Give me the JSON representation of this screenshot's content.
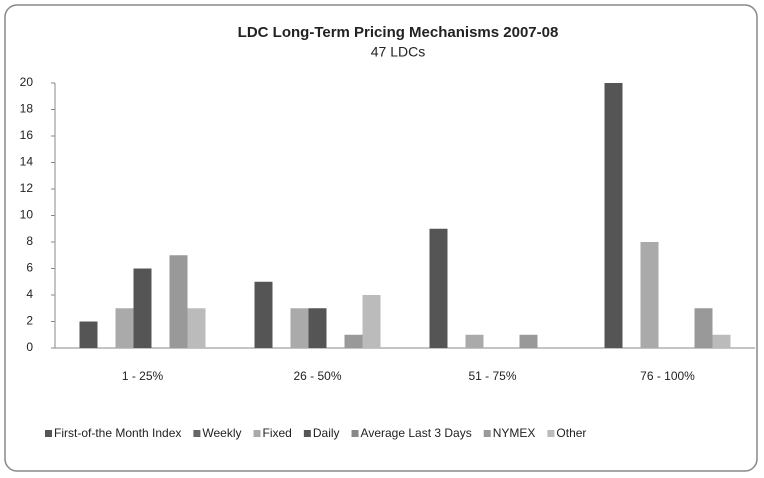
{
  "chart_data": {
    "type": "bar",
    "title": "LDC Long-Term Pricing Mechanisms 2007-08",
    "subtitle": "47 LDCs",
    "categories": [
      "1 - 25%",
      "26 - 50%",
      "51 - 75%",
      "76 - 100%"
    ],
    "series": [
      {
        "name": "First-of-the Month Index",
        "color": "#555555",
        "values": [
          2,
          5,
          9,
          20
        ]
      },
      {
        "name": "Weekly",
        "color": "#666666",
        "values": [
          0,
          0,
          0,
          0
        ]
      },
      {
        "name": "Fixed",
        "color": "#aaaaaa",
        "values": [
          3,
          3,
          1,
          8
        ]
      },
      {
        "name": "Daily",
        "color": "#555555",
        "values": [
          6,
          3,
          0,
          0
        ]
      },
      {
        "name": "Average Last 3 Days",
        "color": "#888888",
        "values": [
          0,
          0,
          0,
          0
        ]
      },
      {
        "name": "NYMEX",
        "color": "#999999",
        "values": [
          7,
          1,
          1,
          3
        ]
      },
      {
        "name": "Other",
        "color": "#bbbbbb",
        "values": [
          3,
          4,
          0,
          1
        ]
      }
    ],
    "ylim": [
      0,
      20
    ],
    "yticks": [
      0,
      2,
      4,
      6,
      8,
      10,
      12,
      14,
      16,
      18,
      20
    ],
    "grid": false,
    "legend": "bottom"
  }
}
